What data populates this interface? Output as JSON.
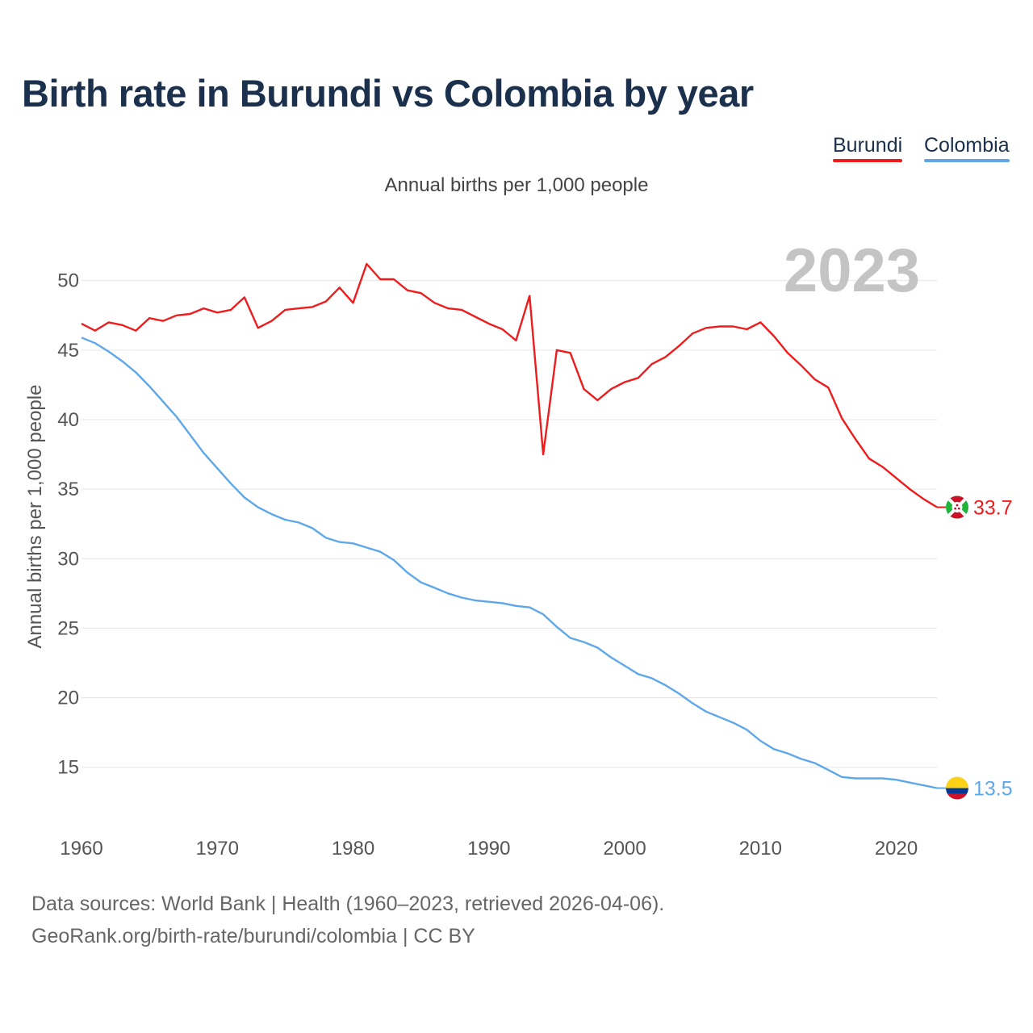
{
  "chart_data": {
    "type": "line",
    "title": "Birth rate in Burundi vs Colombia by year",
    "subtitle": "Annual births per 1,000 people",
    "ylabel": "Annual births per 1,000 people",
    "xlabel": "",
    "year_label": "2023",
    "xlim": [
      1960,
      2023
    ],
    "ylim": [
      11.5,
      53
    ],
    "x_ticks": [
      1960,
      1970,
      1980,
      1990,
      2000,
      2010,
      2020
    ],
    "y_ticks": [
      15,
      20,
      25,
      30,
      35,
      40,
      45,
      50
    ],
    "x": [
      1960,
      1961,
      1962,
      1963,
      1964,
      1965,
      1966,
      1967,
      1968,
      1969,
      1970,
      1971,
      1972,
      1973,
      1974,
      1975,
      1976,
      1977,
      1978,
      1979,
      1980,
      1981,
      1982,
      1983,
      1984,
      1985,
      1986,
      1987,
      1988,
      1989,
      1990,
      1991,
      1992,
      1993,
      1994,
      1995,
      1996,
      1997,
      1998,
      1999,
      2000,
      2001,
      2002,
      2003,
      2004,
      2005,
      2006,
      2007,
      2008,
      2009,
      2010,
      2011,
      2012,
      2013,
      2014,
      2015,
      2016,
      2017,
      2018,
      2019,
      2020,
      2021,
      2022,
      2023
    ],
    "series": [
      {
        "name": "Burundi",
        "color": "#ee1c1c",
        "end_label": "33.7",
        "values": [
          46.9,
          46.4,
          47.0,
          46.8,
          46.4,
          47.3,
          47.1,
          47.5,
          47.6,
          48.0,
          47.7,
          47.9,
          48.8,
          46.6,
          47.1,
          47.9,
          48.0,
          48.1,
          48.5,
          49.5,
          48.4,
          51.2,
          50.1,
          50.1,
          49.3,
          49.1,
          48.4,
          48.0,
          47.9,
          47.4,
          46.9,
          46.5,
          45.7,
          48.9,
          37.5,
          45.0,
          44.8,
          42.2,
          41.4,
          42.2,
          42.7,
          43.0,
          44.0,
          44.5,
          45.3,
          46.2,
          46.6,
          46.7,
          46.7,
          46.5,
          47.0,
          46.0,
          44.8,
          43.9,
          42.9,
          42.3,
          40.1,
          38.6,
          37.2,
          36.6,
          35.8,
          35.0,
          34.3,
          33.7
        ]
      },
      {
        "name": "Colombia",
        "color": "#5ea8ea",
        "end_label": "13.5",
        "values": [
          45.9,
          45.5,
          44.9,
          44.2,
          43.4,
          42.4,
          41.3,
          40.2,
          38.9,
          37.6,
          36.5,
          35.4,
          34.4,
          33.7,
          33.2,
          32.8,
          32.6,
          32.2,
          31.5,
          31.2,
          31.1,
          30.8,
          30.5,
          29.9,
          29.0,
          28.3,
          27.9,
          27.5,
          27.2,
          27.0,
          26.9,
          26.8,
          26.6,
          26.5,
          26.0,
          25.1,
          24.3,
          24.0,
          23.6,
          22.9,
          22.3,
          21.7,
          21.4,
          20.9,
          20.3,
          19.6,
          19.0,
          18.6,
          18.2,
          17.7,
          16.9,
          16.3,
          16.0,
          15.6,
          15.3,
          14.8,
          14.3,
          14.2,
          14.2,
          14.2,
          14.1,
          13.9,
          13.7,
          13.5
        ]
      }
    ]
  },
  "footer": {
    "source": "Data sources: World Bank | Health (1960–2023, retrieved 2026-04-06).",
    "url": "GeoRank.org/birth-rate/burundi/colombia | CC BY"
  }
}
